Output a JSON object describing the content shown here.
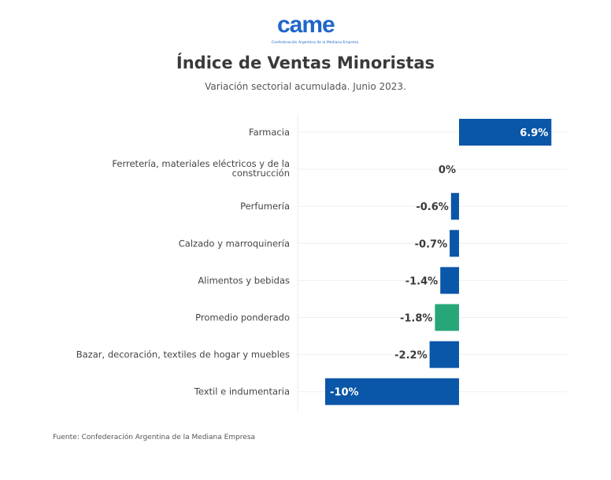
{
  "header": {
    "logo_text": "came",
    "logo_subtitle": "Confederación Argentina de la Mediana Empresa",
    "title": "Índice de Ventas Minoristas",
    "subtitle": "Variación sectorial acumulada. Junio 2023."
  },
  "footer": {
    "source": "Fuente: Confederación Argentina de la Mediana Empresa"
  },
  "colors": {
    "bar_default": "#0a56a8",
    "bar_highlight": "#27a777",
    "label_dark": "#3a3a3a",
    "label_light": "#ffffff"
  },
  "chart_data": {
    "type": "bar",
    "orientation": "horizontal",
    "title": "Índice de Ventas Minoristas",
    "subtitle": "Variación sectorial acumulada. Junio 2023.",
    "xlabel": "",
    "ylabel": "",
    "xlim": [
      -10,
      8
    ],
    "grid": true,
    "unit": "%",
    "categories": [
      [
        "Farmacia"
      ],
      [
        "Ferretería, materiales eléctricos y de la",
        "construcción"
      ],
      [
        "Perfumería"
      ],
      [
        "Calzado y marroquinería"
      ],
      [
        "Alimentos y bebidas"
      ],
      [
        "Promedio ponderado"
      ],
      [
        "Bazar, decoración, textiles de hogar y muebles"
      ],
      [
        "Textil e indumentaria"
      ]
    ],
    "values": [
      6.9,
      0,
      -0.6,
      -0.7,
      -1.4,
      -1.8,
      -2.2,
      -10
    ],
    "value_labels": [
      "6.9%",
      "0%",
      "-0.6%",
      "-0.7%",
      "-1.4%",
      "-1.8%",
      "-2.2%",
      "-10%"
    ],
    "highlight": [
      false,
      false,
      false,
      false,
      false,
      true,
      false,
      false
    ]
  }
}
